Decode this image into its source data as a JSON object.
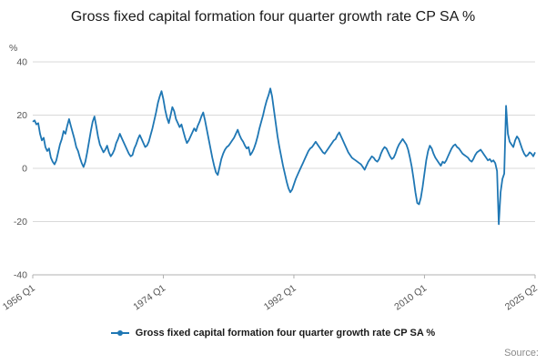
{
  "title": "Gross fixed capital formation four quarter growth rate CP SA %",
  "legend": {
    "label": "Gross fixed capital formation four quarter growth rate CP SA %"
  },
  "source_label": "Source:",
  "colors": {
    "line": "#1f77b4",
    "grid": "#d9d9d9",
    "axis": "#b0b0b0",
    "tick_text": "#555555"
  },
  "chart_data": {
    "type": "line",
    "title": "Gross fixed capital formation four quarter growth rate CP SA %",
    "xlabel": "",
    "ylabel": "%",
    "ylim": [
      -40,
      40
    ],
    "yticks": [
      40,
      20,
      0,
      -20,
      -40
    ],
    "grid": "horizontal",
    "legend_position": "bottom",
    "frequency": "quarterly",
    "x_start": "1956 Q1",
    "x_end": "2025 Q2",
    "xticks": [
      {
        "label": "1956 Q1",
        "index": 0
      },
      {
        "label": "1974 Q1",
        "index": 72
      },
      {
        "label": "1992 Q1",
        "index": 144
      },
      {
        "label": "2010 Q1",
        "index": 216
      },
      {
        "label": "2025 Q2",
        "index": 277
      }
    ],
    "series": [
      {
        "name": "Gross fixed capital formation four quarter growth rate CP SA %",
        "color": "#1f77b4",
        "values": [
          17.5,
          18,
          16.5,
          17,
          13,
          10.5,
          11.5,
          8,
          6.5,
          7.5,
          4,
          2.5,
          1.5,
          3,
          6,
          9,
          11,
          14,
          13,
          16,
          18.5,
          16,
          13.5,
          11,
          8,
          6.5,
          4,
          2,
          0.5,
          2.5,
          6,
          10,
          14,
          17.5,
          19.5,
          16,
          12,
          9,
          7.5,
          6,
          7,
          8.5,
          6,
          4.5,
          5.5,
          7,
          9.5,
          11,
          13,
          11.5,
          10,
          8.5,
          7,
          5.5,
          4.5,
          5,
          7.5,
          9,
          11,
          12.5,
          11,
          9.5,
          8,
          8.5,
          10,
          12.5,
          15,
          18,
          21,
          24.5,
          27,
          29,
          26,
          22,
          19,
          17,
          20,
          23,
          21.5,
          18.5,
          17,
          15.5,
          16.5,
          14,
          11.5,
          9.5,
          10.5,
          12,
          13.5,
          15,
          14,
          16,
          17.5,
          19.5,
          21,
          18,
          14.5,
          11,
          7.5,
          4,
          1,
          -1.5,
          -2.5,
          0.5,
          3.5,
          5.5,
          7,
          8,
          8.5,
          9.5,
          10.5,
          11.5,
          13,
          14.5,
          12.5,
          11,
          10,
          8.5,
          7.5,
          8,
          5,
          6,
          7.5,
          9.5,
          12,
          15,
          17.5,
          20,
          23,
          25.5,
          27.5,
          30,
          27,
          22,
          17,
          12,
          8,
          4.5,
          1,
          -2,
          -5,
          -7.5,
          -9,
          -8,
          -6,
          -4,
          -2.5,
          -1,
          0.5,
          2,
          3.5,
          5,
          6.5,
          7.5,
          8,
          9,
          10,
          9,
          8,
          7,
          6,
          5.5,
          6.5,
          7.5,
          8.5,
          9.5,
          10.5,
          11,
          12.5,
          13.5,
          12,
          10.5,
          9,
          7.5,
          6,
          5,
          4,
          3.5,
          3,
          2.5,
          2,
          1.5,
          0.5,
          -0.5,
          1,
          2.5,
          3.5,
          4.5,
          4,
          3,
          2.5,
          3.5,
          5.5,
          7,
          8,
          7.5,
          6,
          4.5,
          3.5,
          4,
          5.5,
          7.5,
          9,
          10,
          11,
          10,
          9,
          7,
          4,
          0.5,
          -4,
          -9,
          -13,
          -13.5,
          -11,
          -7,
          -2,
          3,
          6.5,
          8.5,
          7.5,
          5.5,
          4,
          3,
          2,
          1,
          2.5,
          2,
          3,
          4.5,
          6,
          7.5,
          8.5,
          9,
          8,
          7.5,
          6.5,
          5.5,
          5,
          4.5,
          4,
          3,
          2.5,
          3.5,
          5,
          6,
          6.5,
          7,
          6,
          5,
          4,
          3,
          3.5,
          2.5,
          3,
          2,
          -1,
          -21,
          -9,
          -4,
          -2,
          23.5,
          13,
          10,
          9,
          8,
          10.5,
          12,
          11,
          9,
          7,
          5.5,
          4.5,
          5,
          6,
          5.5,
          4.5,
          6
        ]
      }
    ]
  }
}
